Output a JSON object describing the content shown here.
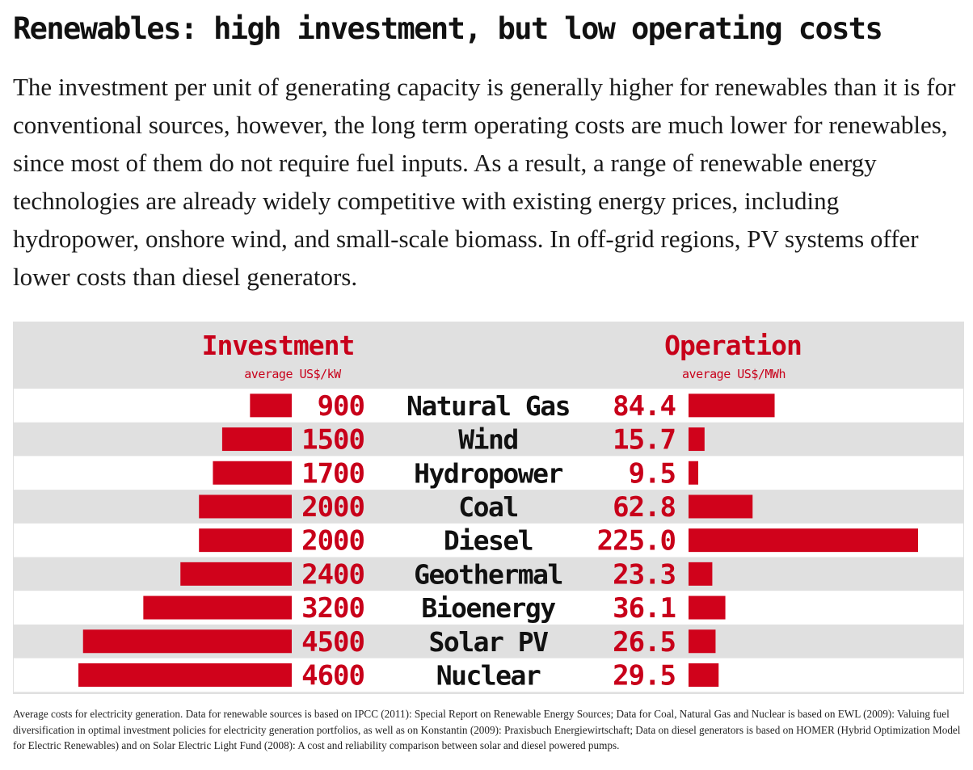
{
  "title": "Renewables: high investment, but low operating costs",
  "intro": "The investment per unit of generating capacity is generally higher for renewables than it is for conventional sources, however, the long term operating costs are much lower for renewables, since most of them do not require fuel inputs. As a result, a range of renewable energy technologies are already widely competitive with existing energy prices, including hydropower, onshore wind, and small-scale biomass. In off-grid regions, PV systems offer lower costs than diesel generators.",
  "chart_data": {
    "type": "bar",
    "orientation": "horizontal",
    "layout": "butterfly",
    "categories": [
      "Natural Gas",
      "Wind",
      "Hydropower",
      "Coal",
      "Diesel",
      "Geothermal",
      "Bioenergy",
      "Solar PV",
      "Nuclear"
    ],
    "series": [
      {
        "name": "Investment",
        "unit": "average US$/kW",
        "values": [
          900,
          1500,
          1700,
          2000,
          2000,
          2400,
          3200,
          4500,
          4600
        ],
        "labels": [
          "900",
          "1500",
          "1700",
          "2000",
          "2000",
          "2400",
          "3200",
          "4500",
          "4600"
        ]
      },
      {
        "name": "Operation",
        "unit": "average US$/MWh",
        "values": [
          84.4,
          15.7,
          9.5,
          62.8,
          225.0,
          23.3,
          36.1,
          26.5,
          29.5
        ],
        "labels": [
          "84.4",
          "15.7",
          "9.5",
          "62.8",
          "225.0",
          "23.3",
          "36.1",
          "26.5",
          "29.5"
        ]
      }
    ],
    "colors": {
      "bar": "#d0021b",
      "value_text": "#c8001a",
      "category_text": "#111111",
      "band": "#e0e0e0",
      "row_alt": "#ffffff"
    },
    "grid": false,
    "legend": "none"
  },
  "caption": "Average costs for electricity generation. Data for renewable sources is based on IPCC (2011): Special Report on Renewable Energy Sources; Data for Coal, Natural Gas and Nuclear is based on EWL (2009): Valuing fuel diversification in optimal investment policies for electricity generation portfolios, as well as on Konstantin (2009): Praxisbuch Energiewirtschaft; Data on diesel generators is based on HOMER (Hybrid Optimization Model for Electric Renewables) and on Solar Electric Light Fund (2008): A cost and reliability comparison between solar and diesel powered pumps."
}
